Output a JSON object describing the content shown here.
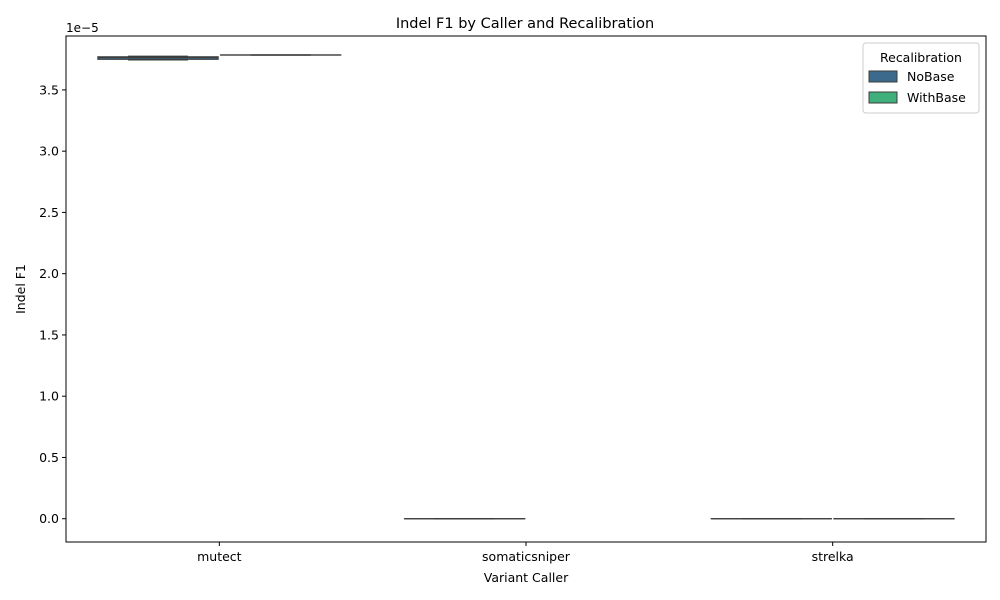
{
  "chart_data": {
    "type": "box",
    "title": "Indel F1 by Caller and Recalibration",
    "xlabel": "Variant Caller",
    "ylabel": "Indel F1",
    "offset_text": "1e−5",
    "scale": 1e-05,
    "ylim": [
      -0.19,
      3.94
    ],
    "yticks": [
      0.0,
      0.5,
      1.0,
      1.5,
      2.0,
      2.5,
      3.0,
      3.5
    ],
    "ytick_labels": [
      "0.0",
      "0.5",
      "1.0",
      "1.5",
      "2.0",
      "2.5",
      "3.0",
      "3.5"
    ],
    "categories": [
      "mutect",
      "somaticsniper",
      "strelka"
    ],
    "legend": {
      "title": "Recalibration",
      "position": "upper right",
      "entries": [
        {
          "label": "NoBase",
          "color": "#3b6a8c"
        },
        {
          "label": "WithBase",
          "color": "#3fb07b"
        }
      ]
    },
    "series": [
      {
        "name": "NoBase",
        "color": "#3b6a8c",
        "boxes": [
          {
            "category": "mutect",
            "whislo": 3.745,
            "q1": 3.75,
            "med": 3.765,
            "q3": 3.77,
            "whishi": 3.775
          },
          {
            "category": "somaticsniper",
            "whislo": 0.0,
            "q1": 0.0,
            "med": 0.0,
            "q3": 0.0,
            "whishi": 0.0
          },
          {
            "category": "strelka",
            "whislo": 0.0,
            "q1": 0.0,
            "med": 0.0,
            "q3": 0.0,
            "whishi": 0.0
          }
        ]
      },
      {
        "name": "WithBase",
        "color": "#3fb07b",
        "boxes": [
          {
            "category": "mutect",
            "whislo": 3.785,
            "q1": 3.785,
            "med": 3.785,
            "q3": 3.785,
            "whishi": 3.785
          },
          {
            "category": "somaticsniper",
            "whislo": null,
            "q1": null,
            "med": null,
            "q3": null,
            "whishi": null
          },
          {
            "category": "strelka",
            "whislo": 0.0,
            "q1": 0.0,
            "med": 0.0,
            "q3": 0.0,
            "whishi": 0.0
          }
        ]
      }
    ],
    "grid": false
  }
}
